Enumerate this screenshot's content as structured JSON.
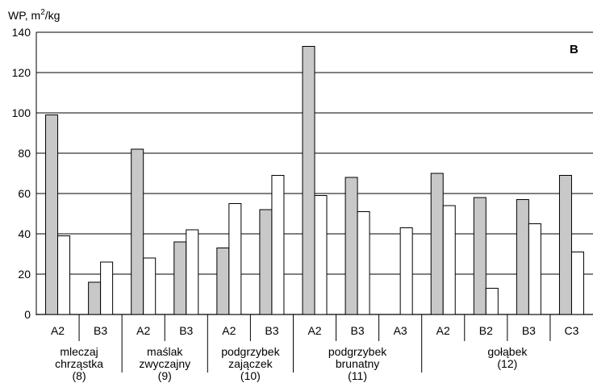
{
  "chart_data": {
    "type": "bar",
    "panel_label": "B",
    "ylabel": {
      "main": "WP, m",
      "sup": "2",
      "tail": "/kg"
    },
    "ylim": [
      0,
      140
    ],
    "yticks": [
      0,
      20,
      40,
      60,
      80,
      100,
      120,
      140
    ],
    "grid": true,
    "colors": {
      "gray": "#c8c8c8",
      "white": "#ffffff",
      "stroke": "#000000"
    },
    "categories": [
      "A2",
      "B3",
      "A2",
      "B3",
      "A2",
      "B3",
      "A2",
      "B3",
      "A3",
      "A2",
      "B2",
      "B3",
      "C3"
    ],
    "series": [
      {
        "color": "gray",
        "values": [
          99,
          16,
          82,
          36,
          33,
          52,
          133,
          68,
          null,
          70,
          58,
          57,
          69
        ]
      },
      {
        "color": "white",
        "values": [
          39,
          26,
          28,
          42,
          55,
          69,
          59,
          51,
          43,
          54,
          13,
          45,
          31
        ]
      }
    ],
    "groups": [
      {
        "lines": [
          "mleczaj",
          "chrząstka",
          "(8)"
        ],
        "start": 0,
        "count": 2
      },
      {
        "lines": [
          "maślak",
          "zwyczajny",
          "(9)"
        ],
        "start": 2,
        "count": 2
      },
      {
        "lines": [
          "podgrzybek",
          "zajączek",
          "(10)"
        ],
        "start": 4,
        "count": 2
      },
      {
        "lines": [
          "podgrzybek",
          "brunatny",
          "(11)"
        ],
        "start": 6,
        "count": 3
      },
      {
        "lines": [
          "gołąbek",
          "(12)"
        ],
        "start": 9,
        "count": 4
      }
    ]
  }
}
